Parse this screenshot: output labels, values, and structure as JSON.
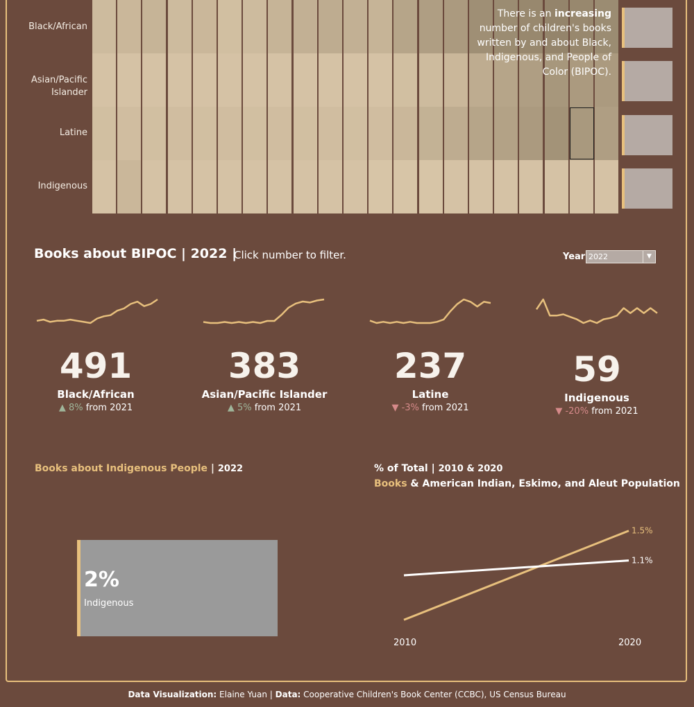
{
  "heatmap": {
    "rows": [
      "Black/African",
      "Asian/Pacific Islander",
      "Latine",
      "Indigenous"
    ],
    "levels": [
      [
        0.15,
        0.2,
        0.25,
        0.15,
        0.2,
        0.1,
        0.15,
        0.25,
        0.3,
        0.35,
        0.3,
        0.25,
        0.45,
        0.55,
        0.6,
        0.75,
        0.8,
        0.85,
        0.9,
        0.85,
        0.8
      ],
      [
        0.05,
        0.05,
        0.05,
        0.05,
        0.05,
        0.05,
        0.05,
        0.05,
        0.05,
        0.05,
        0.05,
        0.05,
        0.1,
        0.15,
        0.2,
        0.35,
        0.45,
        0.55,
        0.65,
        0.6,
        0.6
      ],
      [
        0.1,
        0.12,
        0.1,
        0.12,
        0.1,
        0.12,
        0.1,
        0.12,
        0.1,
        0.12,
        0.1,
        0.12,
        0.2,
        0.28,
        0.35,
        0.45,
        0.5,
        0.6,
        0.7,
        0.62,
        0.55
      ],
      [
        0.05,
        0.2,
        0.05,
        0.05,
        0.05,
        0.05,
        0.05,
        0.05,
        0.05,
        0.05,
        0.05,
        0.02,
        0.02,
        0.02,
        0.05,
        0.05,
        0.05,
        0.05,
        0.05,
        0.05,
        0.05
      ]
    ],
    "callout_pre": "There is an ",
    "callout_bold": "increasing",
    "callout_post": " number of children's books written by and about Black, Indigenous, and People of Color (BIPOC)."
  },
  "section": {
    "title": "Books about BIPOC | 2022 |",
    "hint": "Click number to filter.",
    "year_label": "Year",
    "year_value": "2022"
  },
  "kpis": [
    {
      "value": "491",
      "label": "Black/African",
      "arrow": "▲",
      "change": "8%",
      "suffix": " from 2021",
      "direction": "up",
      "trend": [
        3,
        4,
        2,
        3,
        3,
        4,
        3,
        2,
        1,
        5,
        7,
        8,
        12,
        14,
        18,
        20,
        16,
        18,
        22
      ]
    },
    {
      "value": "383",
      "label": "Asian/Pacific Islander",
      "arrow": "▲",
      "change": "5%",
      "suffix": " from 2021",
      "direction": "up",
      "trend": [
        2,
        1,
        1,
        2,
        1,
        2,
        1,
        2,
        1,
        3,
        3,
        9,
        16,
        20,
        22,
        21,
        23,
        24
      ]
    },
    {
      "value": "237",
      "label": "Latine",
      "arrow": "▼",
      "change": "-3%",
      "suffix": " from 2021",
      "direction": "down",
      "trend": [
        5,
        3,
        4,
        3,
        4,
        3,
        4,
        3,
        3,
        3,
        4,
        6,
        13,
        19,
        23,
        21,
        17,
        21,
        20
      ]
    },
    {
      "value": "59",
      "label": "Indigenous",
      "arrow": "▼",
      "change": "-20%",
      "suffix": " from 2021",
      "direction": "down",
      "trend": [
        14,
        22,
        9,
        9,
        10,
        8,
        6,
        3,
        5,
        3,
        6,
        7,
        9,
        15,
        11,
        15,
        11,
        15,
        11
      ]
    }
  ],
  "bottom_left": {
    "title_highlight": "Books about Indigenous People",
    "title_sep": " | ",
    "title_year": "2022",
    "percent": "2%",
    "category": "Indigenous",
    "share": 0.02
  },
  "bottom_right": {
    "title1_main": "% of Total",
    "title1_sep": " | ",
    "title1_sub": "2010 & 2020",
    "title2_highlight": "Books",
    "title2_rest": " & American Indian, Eskimo, and Aleut Population"
  },
  "chart_data": {
    "type": "line",
    "x": [
      "2010",
      "2020"
    ],
    "series": [
      {
        "name": "Books",
        "values": [
          0.3,
          1.5
        ],
        "color": "#e8c07d"
      },
      {
        "name": "American Indian, Eskimo, and Aleut Population",
        "values": [
          0.9,
          1.1
        ],
        "color": "#ffffff"
      }
    ],
    "end_labels": [
      "1.5%",
      "1.1%"
    ],
    "title": "% of Total | 2010 & 2020",
    "ylim": [
      0.2,
      1.6
    ]
  },
  "footer": {
    "dv_label": "Data Visualization:",
    "dv_name": " Elaine Yuan | ",
    "data_label": "Data:",
    "data_source": " Cooperative Children's Book Center (CCBC), US Census Bureau"
  },
  "colors": {
    "accent": "#e8c07d",
    "background": "#6b4a3d",
    "up": "#9fb59a",
    "down": "#d68a8a"
  }
}
